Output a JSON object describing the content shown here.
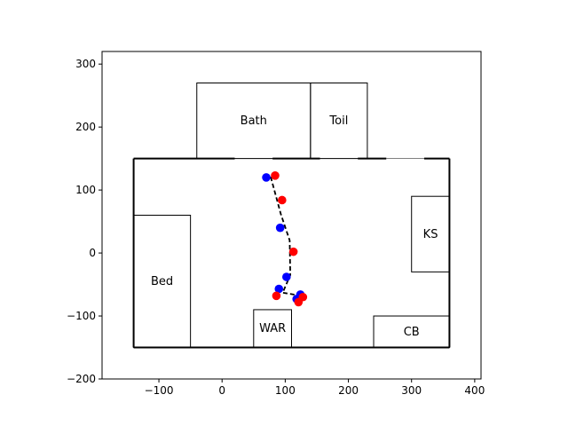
{
  "chart_data": {
    "type": "scatter",
    "title": "",
    "xlabel": "",
    "ylabel": "",
    "xlim": [
      -190,
      410
    ],
    "ylim": [
      -200,
      320
    ],
    "xticks": [
      -100,
      0,
      100,
      200,
      300,
      400
    ],
    "yticks": [
      -200,
      -100,
      0,
      100,
      200,
      300
    ],
    "xtick_labels": [
      "−100",
      "0",
      "100",
      "200",
      "300",
      "400"
    ],
    "ytick_labels": [
      "−200",
      "−100",
      "0",
      "100",
      "200",
      "300"
    ],
    "grid": false,
    "room_outline": {
      "x0": -140,
      "y0": -150,
      "x1": 360,
      "y1": 150
    },
    "door_gaps": [
      {
        "y": 150,
        "from": 20,
        "to": 80
      },
      {
        "y": 150,
        "from": 155,
        "to": 215
      },
      {
        "y": 150,
        "from": 260,
        "to": 320
      }
    ],
    "rooms": [
      {
        "label": "Bath",
        "x0": -40,
        "y0": 150,
        "x1": 140,
        "y1": 270
      },
      {
        "label": "Toil",
        "x0": 140,
        "y0": 150,
        "x1": 230,
        "y1": 270
      },
      {
        "label": "Bed",
        "x0": -140,
        "y0": -150,
        "x1": -50,
        "y1": 60
      },
      {
        "label": "KS",
        "x0": 300,
        "y0": -30,
        "x1": 360,
        "y1": 90
      },
      {
        "label": "WAR",
        "x0": 50,
        "y0": -150,
        "x1": 110,
        "y1": -90
      },
      {
        "label": "CB",
        "x0": 240,
        "y0": -150,
        "x1": 360,
        "y1": -100
      }
    ],
    "series": [
      {
        "color": "#0000ff",
        "points": [
          [
            70,
            120
          ],
          [
            92,
            40
          ],
          [
            102,
            -38
          ],
          [
            90,
            -57
          ],
          [
            124,
            -66
          ],
          [
            118,
            -73
          ]
        ]
      },
      {
        "color": "#ff0000",
        "points": [
          [
            84,
            123
          ],
          [
            95,
            84
          ],
          [
            113,
            2
          ],
          [
            86,
            -68
          ],
          [
            128,
            -70
          ],
          [
            121,
            -78
          ]
        ]
      }
    ],
    "path": {
      "color": "#000000",
      "style": "dashed",
      "points": [
        [
          77,
          121
        ],
        [
          93,
          62
        ],
        [
          107,
          20
        ],
        [
          108,
          -35
        ],
        [
          96,
          -63
        ],
        [
          126,
          -68
        ],
        [
          120,
          -76
        ]
      ]
    }
  }
}
